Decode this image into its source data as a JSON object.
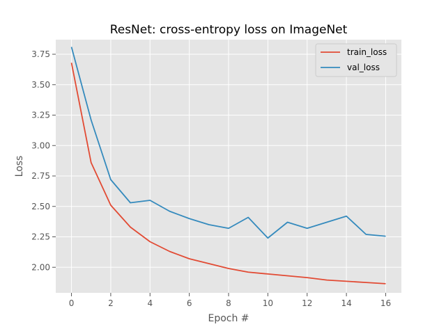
{
  "chart_data": {
    "type": "line",
    "title": "ResNet: cross-entropy loss on ImageNet",
    "xlabel": "Epoch #",
    "ylabel": "Loss",
    "x": [
      0,
      1,
      2,
      3,
      4,
      5,
      6,
      7,
      8,
      9,
      10,
      11,
      12,
      13,
      14,
      15,
      16
    ],
    "xlim": [
      -0.8,
      16.8
    ],
    "ylim": [
      1.79,
      3.87
    ],
    "xticks": [
      0,
      2,
      4,
      6,
      8,
      10,
      12,
      14,
      16
    ],
    "xtick_labels": [
      "0",
      "2",
      "4",
      "6",
      "8",
      "10",
      "12",
      "14",
      "16"
    ],
    "yticks": [
      2.0,
      2.25,
      2.5,
      2.75,
      3.0,
      3.25,
      3.5,
      3.75
    ],
    "ytick_labels": [
      "2.00",
      "2.25",
      "2.50",
      "2.75",
      "3.00",
      "3.25",
      "3.50",
      "3.75"
    ],
    "grid": true,
    "legend_position": "top-right",
    "series": [
      {
        "name": "train_loss",
        "color": "#E24A33",
        "values": [
          3.68,
          2.86,
          2.51,
          2.33,
          2.21,
          2.13,
          2.07,
          2.03,
          1.99,
          1.96,
          1.945,
          1.93,
          1.915,
          1.895,
          1.885,
          1.875,
          1.865
        ]
      },
      {
        "name": "val_loss",
        "color": "#348ABD",
        "values": [
          3.81,
          3.21,
          2.72,
          2.53,
          2.55,
          2.46,
          2.4,
          2.35,
          2.32,
          2.41,
          2.24,
          2.37,
          2.32,
          2.37,
          2.42,
          2.27,
          2.255
        ]
      }
    ]
  }
}
